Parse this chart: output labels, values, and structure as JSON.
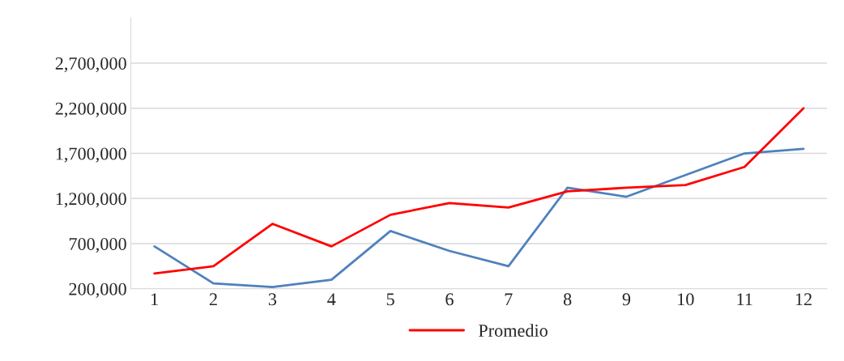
{
  "chart_data": {
    "type": "line",
    "categories": [
      "1",
      "2",
      "3",
      "4",
      "5",
      "6",
      "7",
      "8",
      "9",
      "10",
      "11",
      "12"
    ],
    "series": [
      {
        "color": "#4f81bd",
        "values": [
          670000,
          260000,
          220000,
          300000,
          840000,
          620000,
          450000,
          1320000,
          1220000,
          1460000,
          1700000,
          1750000
        ]
      },
      {
        "name": "Promedio",
        "color": "#ff0000",
        "values": [
          370000,
          450000,
          920000,
          670000,
          1020000,
          1150000,
          1100000,
          1280000,
          1320000,
          1350000,
          1550000,
          2200000
        ]
      }
    ],
    "ylim": [
      200000,
      3200000
    ],
    "yticks": [
      {
        "value": 200000,
        "label": "200,000"
      },
      {
        "value": 700000,
        "label": "700,000"
      },
      {
        "value": 1200000,
        "label": "1,200,000"
      },
      {
        "value": 1700000,
        "label": "1,700,000"
      },
      {
        "value": 2200000,
        "label": "2,200,000"
      },
      {
        "value": 2700000,
        "label": "2,700,000"
      }
    ],
    "grid": "y",
    "legend": "bottom",
    "marker": "none",
    "line_style": "solid"
  }
}
